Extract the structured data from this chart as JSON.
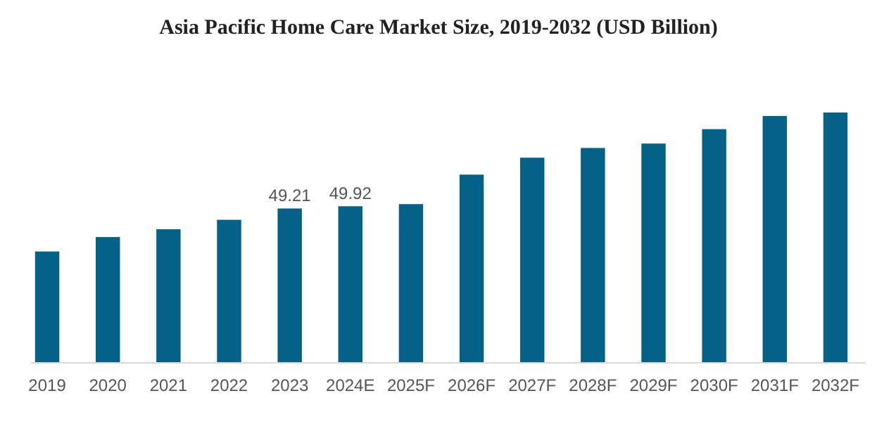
{
  "chart_data": {
    "type": "bar",
    "title": "Asia Pacific Home Care Market Size, 2019-2032 (USD Billion)",
    "categories": [
      "2019",
      "2020",
      "2021",
      "2022",
      "2023",
      "2024E",
      "2025F",
      "2026F",
      "2027F",
      "2028F",
      "2029F",
      "2030F",
      "2031F",
      "2032F"
    ],
    "values": [
      35.5,
      40.1,
      42.6,
      45.6,
      49.21,
      49.92,
      50.6,
      60.0,
      65.4,
      68.5,
      69.9,
      74.5,
      78.7,
      79.8
    ],
    "value_labels": [
      null,
      null,
      null,
      null,
      "49.21",
      "49.92",
      null,
      null,
      null,
      null,
      null,
      null,
      null,
      null
    ],
    "color": "#046289"
  }
}
